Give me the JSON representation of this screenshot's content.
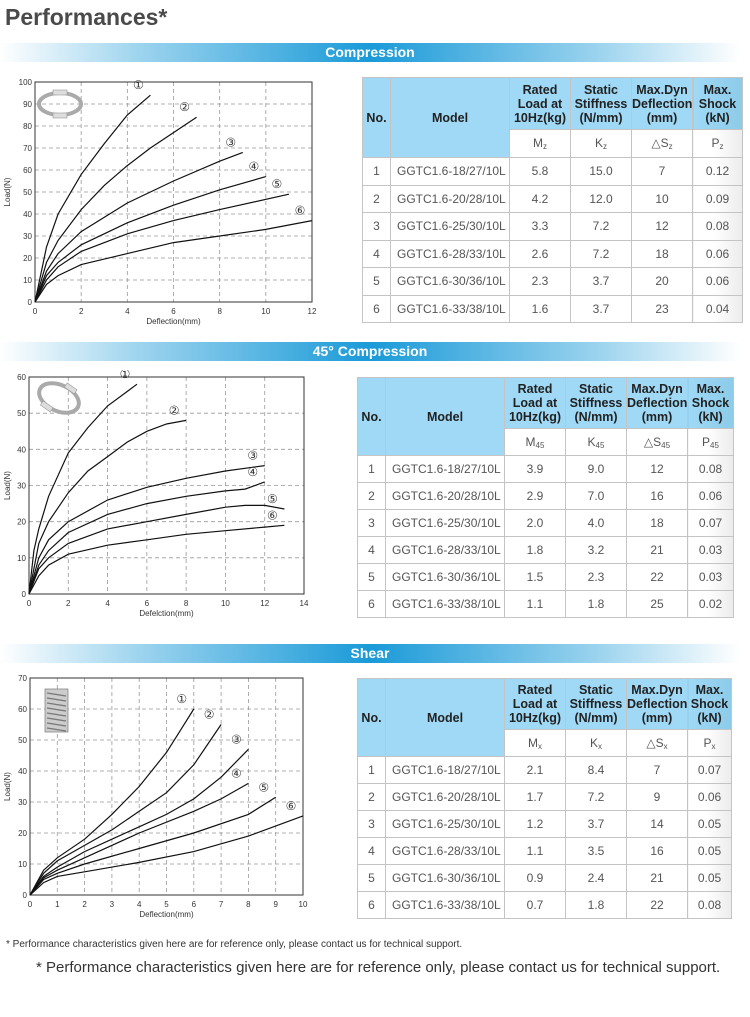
{
  "title": "Performances*",
  "footnote_small": "* Performance characteristics given here are for reference only, please contact us for technical support.",
  "footnote_large": "* Performance characteristics given here are for reference only, please contact us for technical support.",
  "colors": {
    "banner": "#1a9ad8",
    "header": "#9fd9f6"
  },
  "table_headers": [
    "No.",
    "Model",
    "Rated Load at 10Hz(kg)",
    "Static Stiffness (N/mm)",
    "Max.Dyn Deflection (mm)",
    "Max. Shock (kN)"
  ],
  "sections": [
    {
      "banner": "Compression",
      "symbols": [
        {
          "base": "M",
          "sub": "z"
        },
        {
          "base": "K",
          "sub": "z"
        },
        {
          "base": "△S",
          "sub": "z"
        },
        {
          "base": "P",
          "sub": "z"
        }
      ],
      "rows": [
        [
          "1",
          "GGTC1.6-18/27/10L",
          "5.8",
          "15.0",
          "7",
          "0.12"
        ],
        [
          "2",
          "GGTC1.6-20/28/10L",
          "4.2",
          "12.0",
          "10",
          "0.09"
        ],
        [
          "3",
          "GGTC1.6-25/30/10L",
          "3.3",
          "7.2",
          "12",
          "0.08"
        ],
        [
          "4",
          "GGTC1.6-28/33/10L",
          "2.6",
          "7.2",
          "18",
          "0.06"
        ],
        [
          "5",
          "GGTC1.6-30/36/10L",
          "2.3",
          "3.7",
          "20",
          "0.06"
        ],
        [
          "6",
          "GGTC1.6-33/38/10L",
          "1.6",
          "3.7",
          "23",
          "0.04"
        ]
      ]
    },
    {
      "banner": "45° Compression",
      "symbols": [
        {
          "base": "M",
          "sub": "45"
        },
        {
          "base": "K",
          "sub": "45"
        },
        {
          "base": "△S",
          "sub": "45"
        },
        {
          "base": "P",
          "sub": "45"
        }
      ],
      "rows": [
        [
          "1",
          "GGTC1.6-18/27/10L",
          "3.9",
          "9.0",
          "12",
          "0.08"
        ],
        [
          "2",
          "GGTC1.6-20/28/10L",
          "2.9",
          "7.0",
          "16",
          "0.06"
        ],
        [
          "3",
          "GGTC1.6-25/30/10L",
          "2.0",
          "4.0",
          "18",
          "0.07"
        ],
        [
          "4",
          "GGTC1.6-28/33/10L",
          "1.8",
          "3.2",
          "21",
          "0.03"
        ],
        [
          "5",
          "GGTC1.6-30/36/10L",
          "1.5",
          "2.3",
          "22",
          "0.03"
        ],
        [
          "6",
          "GGTC1.6-33/38/10L",
          "1.1",
          "1.8",
          "25",
          "0.02"
        ]
      ]
    },
    {
      "banner": "Shear",
      "symbols": [
        {
          "base": "M",
          "sub": "x"
        },
        {
          "base": "K",
          "sub": "x"
        },
        {
          "base": "△S",
          "sub": "x"
        },
        {
          "base": "P",
          "sub": "x"
        }
      ],
      "rows": [
        [
          "1",
          "GGTC1.6-18/27/10L",
          "2.1",
          "8.4",
          "7",
          "0.07"
        ],
        [
          "2",
          "GGTC1.6-20/28/10L",
          "1.7",
          "7.2",
          "9",
          "0.06"
        ],
        [
          "3",
          "GGTC1.6-25/30/10L",
          "1.2",
          "3.7",
          "14",
          "0.05"
        ],
        [
          "4",
          "GGTC1.6-28/33/10L",
          "1.1",
          "3.5",
          "16",
          "0.05"
        ],
        [
          "5",
          "GGTC1.6-30/36/10L",
          "0.9",
          "2.4",
          "21",
          "0.05"
        ],
        [
          "6",
          "GGTC1.6-33/38/10L",
          "0.7",
          "1.8",
          "22",
          "0.08"
        ]
      ]
    }
  ],
  "chart_data": [
    {
      "type": "line",
      "title": "Compression",
      "xlabel": "Deflection(mm)",
      "ylabel": "Load(N)",
      "xlim": [
        0,
        12
      ],
      "ylim": [
        0,
        100
      ],
      "xticks": [
        0,
        2,
        4,
        6,
        8,
        10,
        12
      ],
      "yticks": [
        0,
        10,
        20,
        30,
        40,
        50,
        60,
        70,
        80,
        90,
        100
      ],
      "grid": true,
      "series": [
        {
          "name": "①",
          "x": [
            0,
            0.5,
            1,
            2,
            3,
            4,
            5
          ],
          "y": [
            0,
            25,
            40,
            58,
            72,
            85,
            94
          ]
        },
        {
          "name": "②",
          "x": [
            0,
            0.5,
            1,
            2,
            3,
            4,
            5,
            6,
            7
          ],
          "y": [
            0,
            18,
            28,
            42,
            53,
            62,
            70,
            77,
            84
          ]
        },
        {
          "name": "③",
          "x": [
            0,
            0.5,
            1,
            2,
            4,
            6,
            8,
            9
          ],
          "y": [
            0,
            14,
            22,
            32,
            45,
            55,
            64,
            68
          ]
        },
        {
          "name": "④",
          "x": [
            0,
            0.5,
            1,
            2,
            4,
            6,
            8,
            10
          ],
          "y": [
            0,
            12,
            18,
            26,
            36,
            44,
            51,
            57
          ]
        },
        {
          "name": "⑤",
          "x": [
            0,
            0.5,
            1,
            2,
            4,
            6,
            8,
            11
          ],
          "y": [
            0,
            10,
            16,
            23,
            31,
            37,
            42,
            49
          ]
        },
        {
          "name": "⑥",
          "x": [
            0,
            0.5,
            1,
            2,
            4,
            6,
            8,
            10,
            12
          ],
          "y": [
            0,
            8,
            12,
            17,
            22,
            27,
            30,
            33,
            37
          ]
        }
      ]
    },
    {
      "type": "line",
      "title": "45° Compression",
      "xlabel": "Defelction(mm)",
      "ylabel": "Load(N)",
      "xlim": [
        0,
        14
      ],
      "ylim": [
        0,
        60
      ],
      "xticks": [
        0,
        2,
        4,
        6,
        8,
        10,
        12,
        14
      ],
      "yticks": [
        0,
        10,
        20,
        30,
        40,
        50,
        60
      ],
      "grid": true,
      "series": [
        {
          "name": "①",
          "x": [
            0,
            0.25,
            0.5,
            1,
            2,
            3,
            4,
            5,
            5.5
          ],
          "y": [
            0,
            12,
            18,
            27,
            39,
            46,
            52,
            56,
            58
          ]
        },
        {
          "name": "②",
          "x": [
            0,
            0.5,
            1,
            2,
            3,
            4,
            5,
            6,
            7,
            8
          ],
          "y": [
            0,
            14,
            20,
            28,
            34,
            38,
            42,
            45,
            47,
            48
          ]
        },
        {
          "name": "③",
          "x": [
            0,
            0.5,
            1,
            2,
            4,
            6,
            8,
            10,
            12
          ],
          "y": [
            0,
            10,
            15,
            20,
            26,
            29.5,
            32,
            34,
            35.5
          ]
        },
        {
          "name": "④",
          "x": [
            0,
            0.5,
            1,
            2,
            4,
            6,
            8,
            10,
            11,
            12
          ],
          "y": [
            0,
            8,
            12,
            17,
            22,
            25,
            27,
            28.5,
            29,
            31
          ]
        },
        {
          "name": "⑤",
          "x": [
            0,
            0.5,
            1,
            2,
            4,
            6,
            8,
            10,
            11,
            12,
            13
          ],
          "y": [
            0,
            7,
            10,
            14,
            18,
            20,
            22,
            24,
            24.5,
            24.5,
            23.5
          ]
        },
        {
          "name": "⑥",
          "x": [
            0,
            0.5,
            1,
            2,
            4,
            6,
            8,
            10,
            12,
            13
          ],
          "y": [
            0,
            5,
            8,
            11,
            13.5,
            15,
            16.5,
            17.5,
            18.5,
            19
          ]
        }
      ]
    },
    {
      "type": "line",
      "title": "Shear",
      "xlabel": "Deflection(mm)",
      "ylabel": "Load(N)",
      "xlim": [
        0,
        10
      ],
      "ylim": [
        0,
        70
      ],
      "xticks": [
        0,
        1,
        2,
        3,
        4,
        5,
        6,
        7,
        8,
        9,
        10
      ],
      "yticks": [
        0,
        10,
        20,
        30,
        40,
        50,
        60,
        70
      ],
      "grid": true,
      "series": [
        {
          "name": "①",
          "x": [
            0,
            0.5,
            1,
            2,
            3,
            4,
            5,
            5.5,
            6
          ],
          "y": [
            0,
            8,
            12,
            18,
            26,
            35,
            46,
            53,
            60
          ]
        },
        {
          "name": "②",
          "x": [
            0,
            0.5,
            1,
            2,
            3,
            4,
            5,
            6,
            7
          ],
          "y": [
            0,
            7,
            11,
            16,
            21,
            27,
            33,
            42,
            55
          ]
        },
        {
          "name": "③",
          "x": [
            0,
            0.5,
            1,
            2,
            3,
            4,
            5,
            6,
            7,
            8
          ],
          "y": [
            0,
            6,
            9,
            14,
            18,
            22,
            26,
            31,
            38,
            47
          ]
        },
        {
          "name": "④",
          "x": [
            0,
            0.5,
            1,
            2,
            4,
            6,
            7,
            8
          ],
          "y": [
            0,
            5.5,
            8,
            12,
            20,
            27,
            31,
            36
          ]
        },
        {
          "name": "⑤",
          "x": [
            0,
            0.5,
            1,
            2,
            4,
            6,
            8,
            9
          ],
          "y": [
            0,
            5,
            7,
            10,
            15,
            20,
            26,
            31.5
          ]
        },
        {
          "name": "⑥",
          "x": [
            0,
            0.5,
            1,
            2,
            4,
            6,
            8,
            10
          ],
          "y": [
            0,
            4,
            6,
            7.5,
            10.5,
            14,
            19,
            25.5
          ]
        }
      ]
    }
  ]
}
